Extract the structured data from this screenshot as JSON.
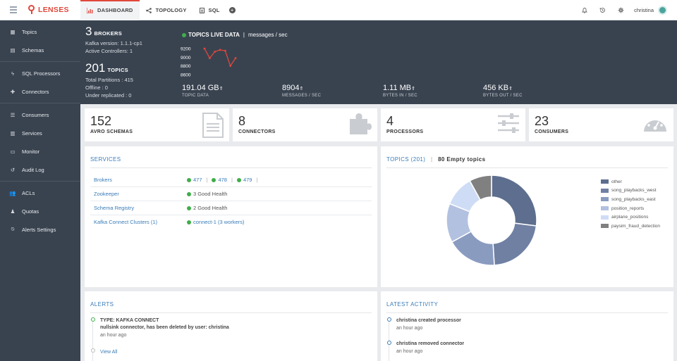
{
  "app": {
    "name": "LENSES"
  },
  "nav": {
    "tabs": [
      {
        "label": "DASHBOARD",
        "icon": "bar-chart-icon"
      },
      {
        "label": "TOPOLOGY",
        "icon": "share-icon"
      },
      {
        "label": "SQL",
        "icon": "document-icon"
      }
    ],
    "user": "christina"
  },
  "sidebar": {
    "items": [
      {
        "label": "Topics",
        "icon": "table-icon"
      },
      {
        "label": "Schemas",
        "icon": "file-icon"
      },
      {
        "label": "SQL Processors",
        "icon": "bolt-icon"
      },
      {
        "label": "Connectors",
        "icon": "puzzle-icon"
      },
      {
        "label": "Consumers",
        "icon": "sliders-icon"
      },
      {
        "label": "Services",
        "icon": "bar-chart-icon"
      },
      {
        "label": "Monitor",
        "icon": "monitor-icon"
      },
      {
        "label": "Audit Log",
        "icon": "history-icon"
      },
      {
        "label": "ACLs",
        "icon": "users-icon"
      },
      {
        "label": "Quotas",
        "icon": "user-icon"
      },
      {
        "label": "Alerts Settings",
        "icon": "alert-off-icon"
      }
    ]
  },
  "cluster": {
    "brokers": {
      "count": "3",
      "label": "BROKERS",
      "version": "Kafka version: 1.1.1-cp1",
      "controllers": "Active Controllers: 1"
    },
    "topics": {
      "count": "201",
      "label": "TOPICS",
      "partitions": "Total Partitions : 415",
      "offline": "Offline : 0",
      "under_replicated": "Under replicated : 0"
    }
  },
  "live": {
    "title": "TOPICS LIVE DATA",
    "unit": "messages / sec",
    "y_ticks": [
      "9200",
      "9000",
      "8800",
      "8600"
    ],
    "status_color": "#3fae49",
    "metrics": [
      {
        "value": "191.04 GB",
        "label": "TOPIC DATA"
      },
      {
        "value": "8904",
        "label": "MESSAGES / SEC"
      },
      {
        "value": "1.11 MB",
        "label": "BYTES IN / SEC"
      },
      {
        "value": "456 KB",
        "label": "BYTES OUT / SEC"
      }
    ]
  },
  "chart_data": [
    {
      "type": "line",
      "title": "TOPICS LIVE DATA",
      "ylabel": "messages / sec",
      "ylim": [
        8550,
        9250
      ],
      "series": [
        {
          "values": [
            9200,
            8980,
            9130,
            9170,
            9150,
            8800,
            8980
          ]
        }
      ]
    },
    {
      "type": "pie",
      "title": "TOPICS (201)",
      "categories": [
        "other",
        "song_playbacks_west",
        "song_playbacks_east",
        "position_reports",
        "airplane_positions",
        "paysim_fraud_detection"
      ],
      "values": [
        27,
        22,
        18,
        14,
        11,
        8
      ]
    }
  ],
  "kpis": [
    {
      "value": "152",
      "label": "AVRO SCHEMAS",
      "icon": "document-icon"
    },
    {
      "value": "8",
      "label": "CONNECTORS",
      "icon": "puzzle-icon"
    },
    {
      "value": "4",
      "label": "PROCESSORS",
      "icon": "sliders-icon"
    },
    {
      "value": "23",
      "label": "CONSUMERS",
      "icon": "gauge-icon"
    }
  ],
  "services": {
    "title": "SERVICES",
    "brokers": {
      "label": "Brokers",
      "ids": [
        "477",
        "478",
        "479"
      ]
    },
    "rows": [
      {
        "label": "Zookeeper",
        "value": "3 Good Health"
      },
      {
        "label": "Schema Registry",
        "value": "2 Good Health"
      },
      {
        "label": "Kafka Connect Clusters (1)",
        "value": "connect-1 (3 workers)"
      }
    ]
  },
  "topics": {
    "title": "TOPICS (201)",
    "empty": "80 Empty topics",
    "colors": [
      "#5d6e8e",
      "#6f80a3",
      "#8a9bc0",
      "#b3c1e0",
      "#cfdcf6",
      "#808080"
    ]
  },
  "alerts": {
    "title": "ALERTS",
    "type": "TYPE: KAFKA CONNECT",
    "message": "nullsink connector, has been deleted by user: christina",
    "time": "an hour ago",
    "view_all": "View All"
  },
  "activity": {
    "title": "LATEST ACTIVITY",
    "items": [
      {
        "text": "christina created processor",
        "time": "an hour ago"
      },
      {
        "text": "christina removed connector",
        "time": "an hour ago"
      }
    ]
  }
}
